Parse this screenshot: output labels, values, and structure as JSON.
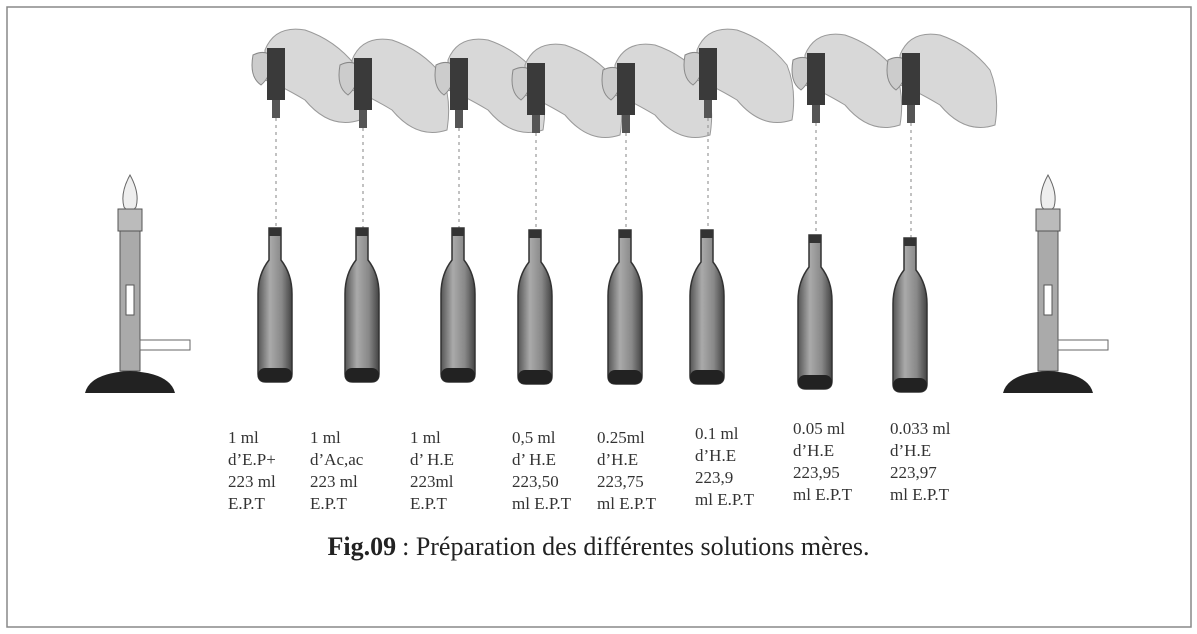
{
  "labels": [
    [
      "1 ml",
      "d’E.P+",
      "223 ml",
      "E.P.T"
    ],
    [
      "1 ml",
      "d’Ac,ac",
      "223 ml",
      "E.P.T"
    ],
    [
      "1 ml",
      "d’ H.E",
      "223ml",
      "E.P.T"
    ],
    [
      "0,5 ml",
      "d’ H.E",
      "223,50",
      "ml E.P.T"
    ],
    [
      "0.25ml",
      "d’H.E",
      "223,75",
      "ml E.P.T"
    ],
    [
      "0.1 ml",
      "d’H.E",
      "223,9",
      "ml E.P.T"
    ],
    [
      "0.05 ml",
      "d’H.E",
      "223,95",
      "ml E.P.T"
    ],
    [
      "0.033 ml",
      "d’H.E",
      "223,97",
      "ml E.P.T"
    ]
  ],
  "caption": {
    "label": "Fig.09",
    "text": ": Préparation des différentes solutions mères."
  }
}
